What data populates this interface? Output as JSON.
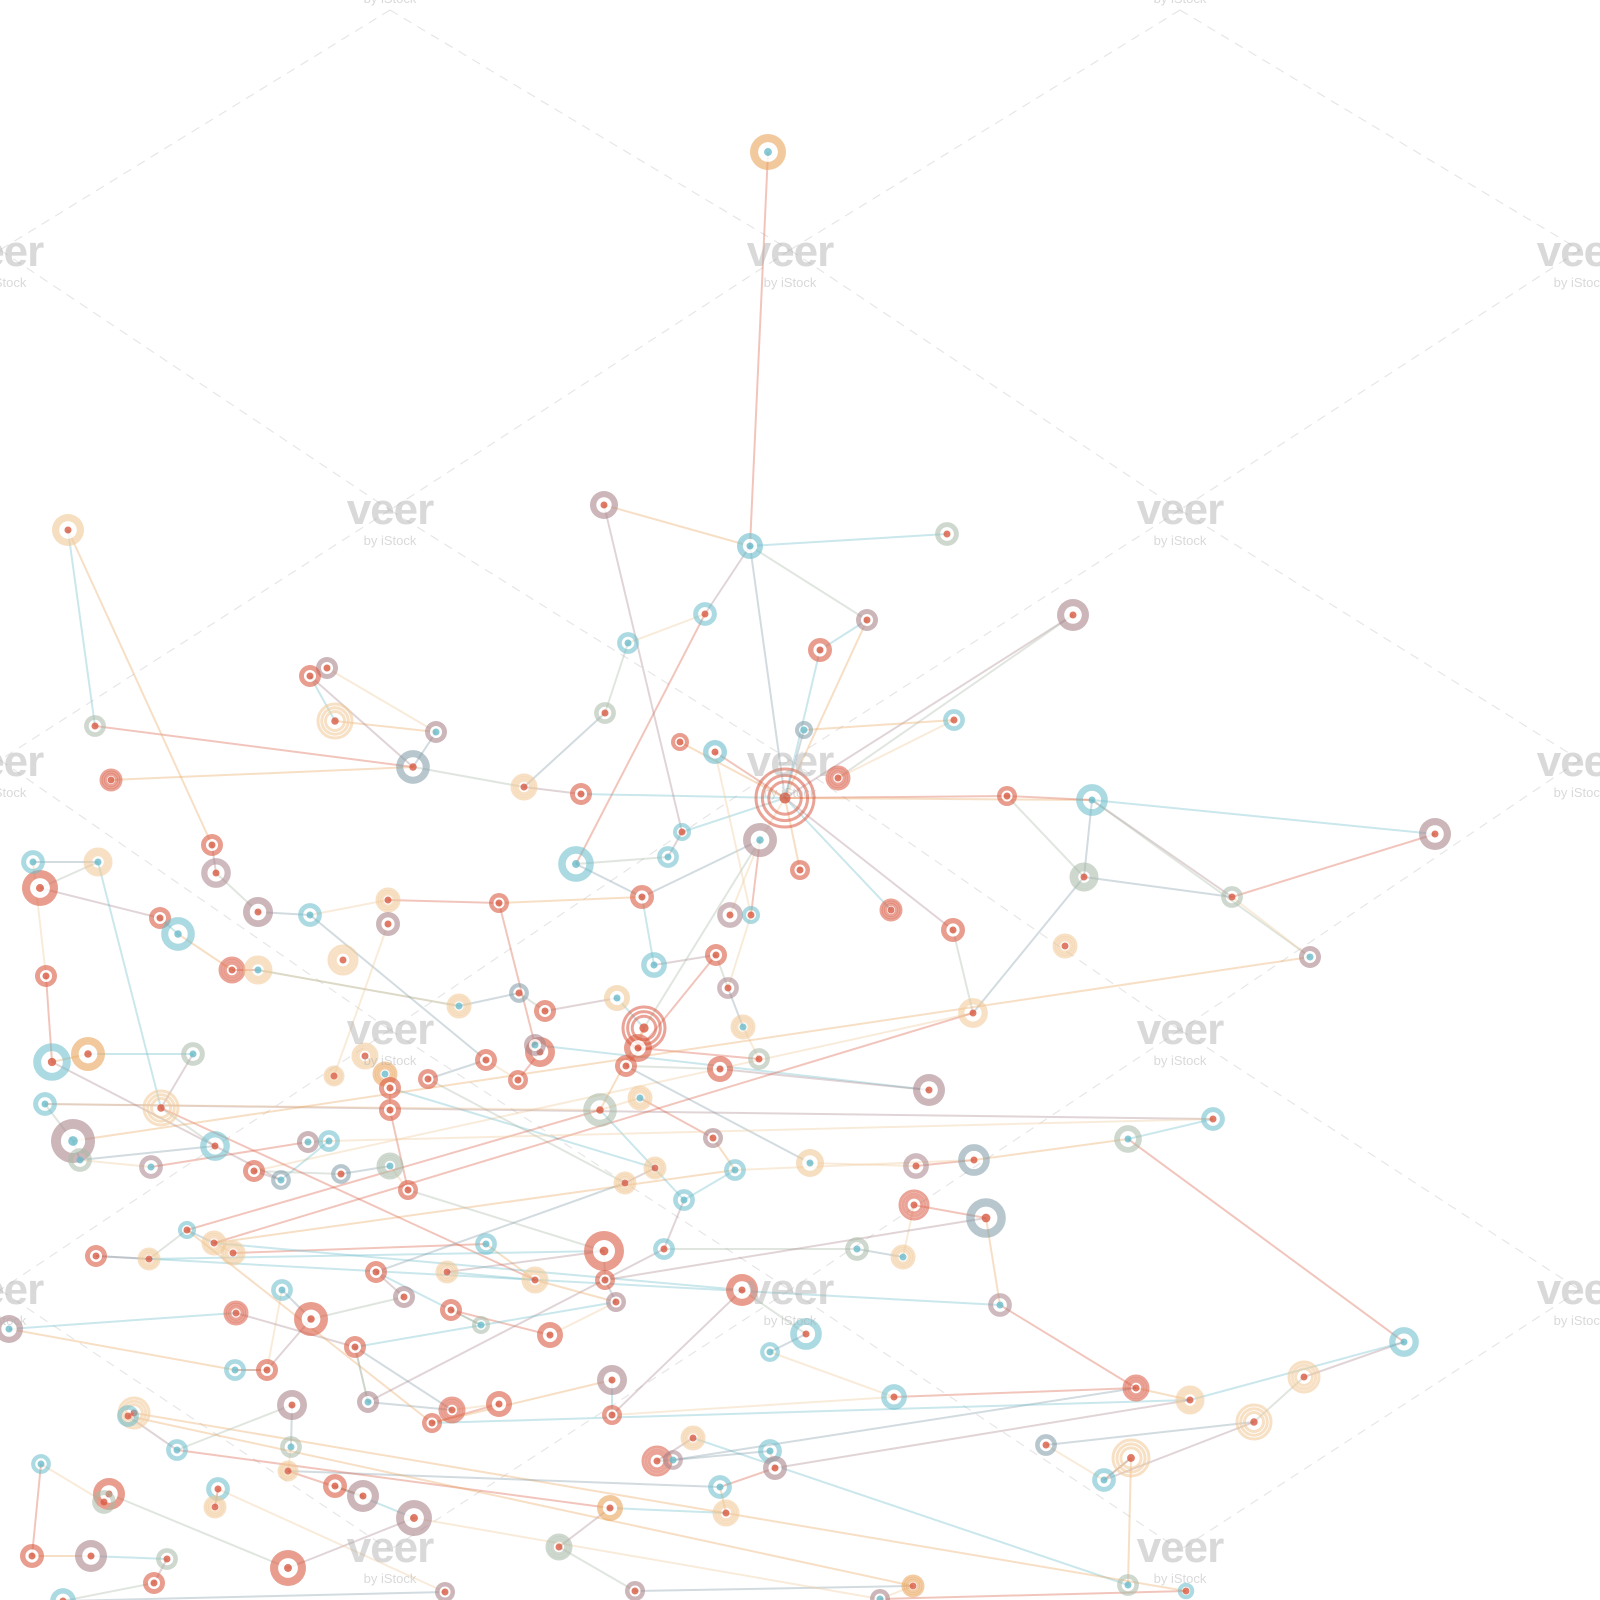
{
  "image": {
    "description_type": "stock network illustration",
    "palette": {
      "red": "#d95b43",
      "orange": "#e9a45b",
      "teal": "#6bbccb",
      "mauve": "#a9868c",
      "sage": "#a8b9a6",
      "slate": "#7f9aa5",
      "peach": "#f0c896",
      "background": "#ffffff"
    }
  },
  "watermark": {
    "brand": "veer",
    "sub": "by iStock"
  }
}
